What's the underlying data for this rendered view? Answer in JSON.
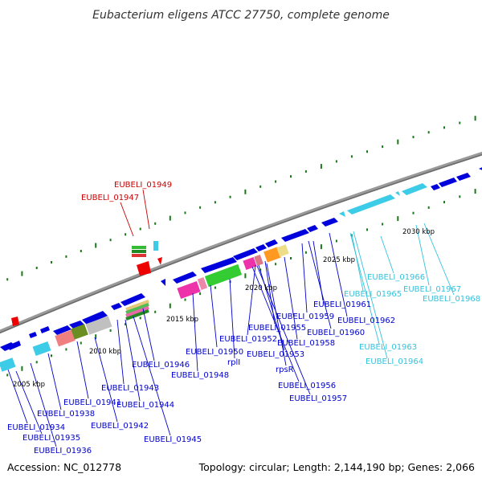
{
  "title": "Eubacterium eligens ATCC 27750, complete genome",
  "footer": {
    "accession": "Accession: NC_012778",
    "topology": "Topology: circular; Length: 2,144,190 bp; Genes: 2,066"
  },
  "colors": {
    "forward_gene": "#0000dd",
    "tRNA": "#3ccce8",
    "rRNA": "#ee0000",
    "label_blue": "#0000cc",
    "label_red": "#cc0000",
    "label_cyan": "#33c3dd",
    "backbone": "#888888",
    "gc_ticks": "#1a7a1a"
  },
  "ticks": [
    {
      "label": "2005 kbp"
    },
    {
      "label": "2010 kbp"
    },
    {
      "label": "2015 kbp"
    },
    {
      "label": "2020 kbp"
    },
    {
      "label": "2025 kbp"
    },
    {
      "label": "2030 kbp"
    }
  ],
  "gene_labels": [
    {
      "text": "EUBELI_01949",
      "kind": "red"
    },
    {
      "text": "EUBELI_01947",
      "kind": "red"
    },
    {
      "text": "EUBELI_01966",
      "kind": "cyan"
    },
    {
      "text": "EUBELI_01967",
      "kind": "cyan"
    },
    {
      "text": "EUBELI_01968",
      "kind": "cyan"
    },
    {
      "text": "EUBELI_01965",
      "kind": "cyan"
    },
    {
      "text": "EUBELI_01961",
      "kind": "blue"
    },
    {
      "text": "EUBELI_01962",
      "kind": "blue"
    },
    {
      "text": "EUBELI_01959",
      "kind": "blue"
    },
    {
      "text": "EUBELI_01960",
      "kind": "blue"
    },
    {
      "text": "EUBELI_01955",
      "kind": "blue"
    },
    {
      "text": "EUBELI_01958",
      "kind": "blue"
    },
    {
      "text": "EUBELI_01952",
      "kind": "blue"
    },
    {
      "text": "EUBELI_01963",
      "kind": "cyan"
    },
    {
      "text": "EUBELI_01950",
      "kind": "blue"
    },
    {
      "text": "EUBELI_01953",
      "kind": "blue"
    },
    {
      "text": "EUBELI_01964",
      "kind": "cyan"
    },
    {
      "text": "rplI",
      "kind": "blue"
    },
    {
      "text": "EUBELI_01946",
      "kind": "blue"
    },
    {
      "text": "rpsR",
      "kind": "blue"
    },
    {
      "text": "EUBELI_01948",
      "kind": "blue"
    },
    {
      "text": "EUBELI_01956",
      "kind": "blue"
    },
    {
      "text": "EUBELI_01943",
      "kind": "blue"
    },
    {
      "text": "EUBELI_01957",
      "kind": "blue"
    },
    {
      "text": "EUBELI_01941",
      "kind": "blue"
    },
    {
      "text": "EUBELI_01944",
      "kind": "blue"
    },
    {
      "text": "EUBELI_01938",
      "kind": "blue"
    },
    {
      "text": "EUBELI_01942",
      "kind": "blue"
    },
    {
      "text": "EUBELI_01934",
      "kind": "blue"
    },
    {
      "text": "EUBELI_01935",
      "kind": "blue"
    },
    {
      "text": "EUBELI_01945",
      "kind": "blue"
    },
    {
      "text": "EUBELI_01936",
      "kind": "blue"
    }
  ]
}
